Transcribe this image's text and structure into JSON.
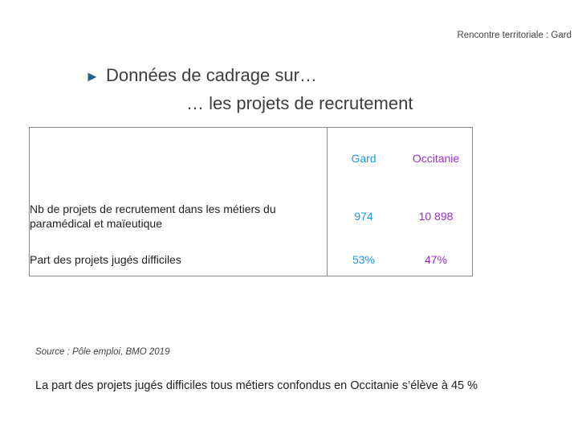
{
  "header": {
    "right_label": "Rencontre territoriale : Gard"
  },
  "title": {
    "arrow": "►",
    "line1": "Données de cadrage sur…",
    "line2": "… les projets de recrutement"
  },
  "table": {
    "columns": [
      "Gard",
      "Occitanie"
    ],
    "rows": [
      {
        "label": "Nb de projets de recrutement dans les métiers du paramédical et maïeutique",
        "gard": "974",
        "occitanie": "10 898"
      },
      {
        "label": "Part des projets jugés difficiles",
        "gard": "53%",
        "occitanie": "47%"
      }
    ]
  },
  "source": "Source : Pôle emploi, BMO 2019",
  "footnote": "La part des projets jugés difficiles tous métiers confondus en Occitanie s’élève à 45 %",
  "colors": {
    "gard": "#1f9ad6",
    "occitanie": "#9b2fc4"
  }
}
